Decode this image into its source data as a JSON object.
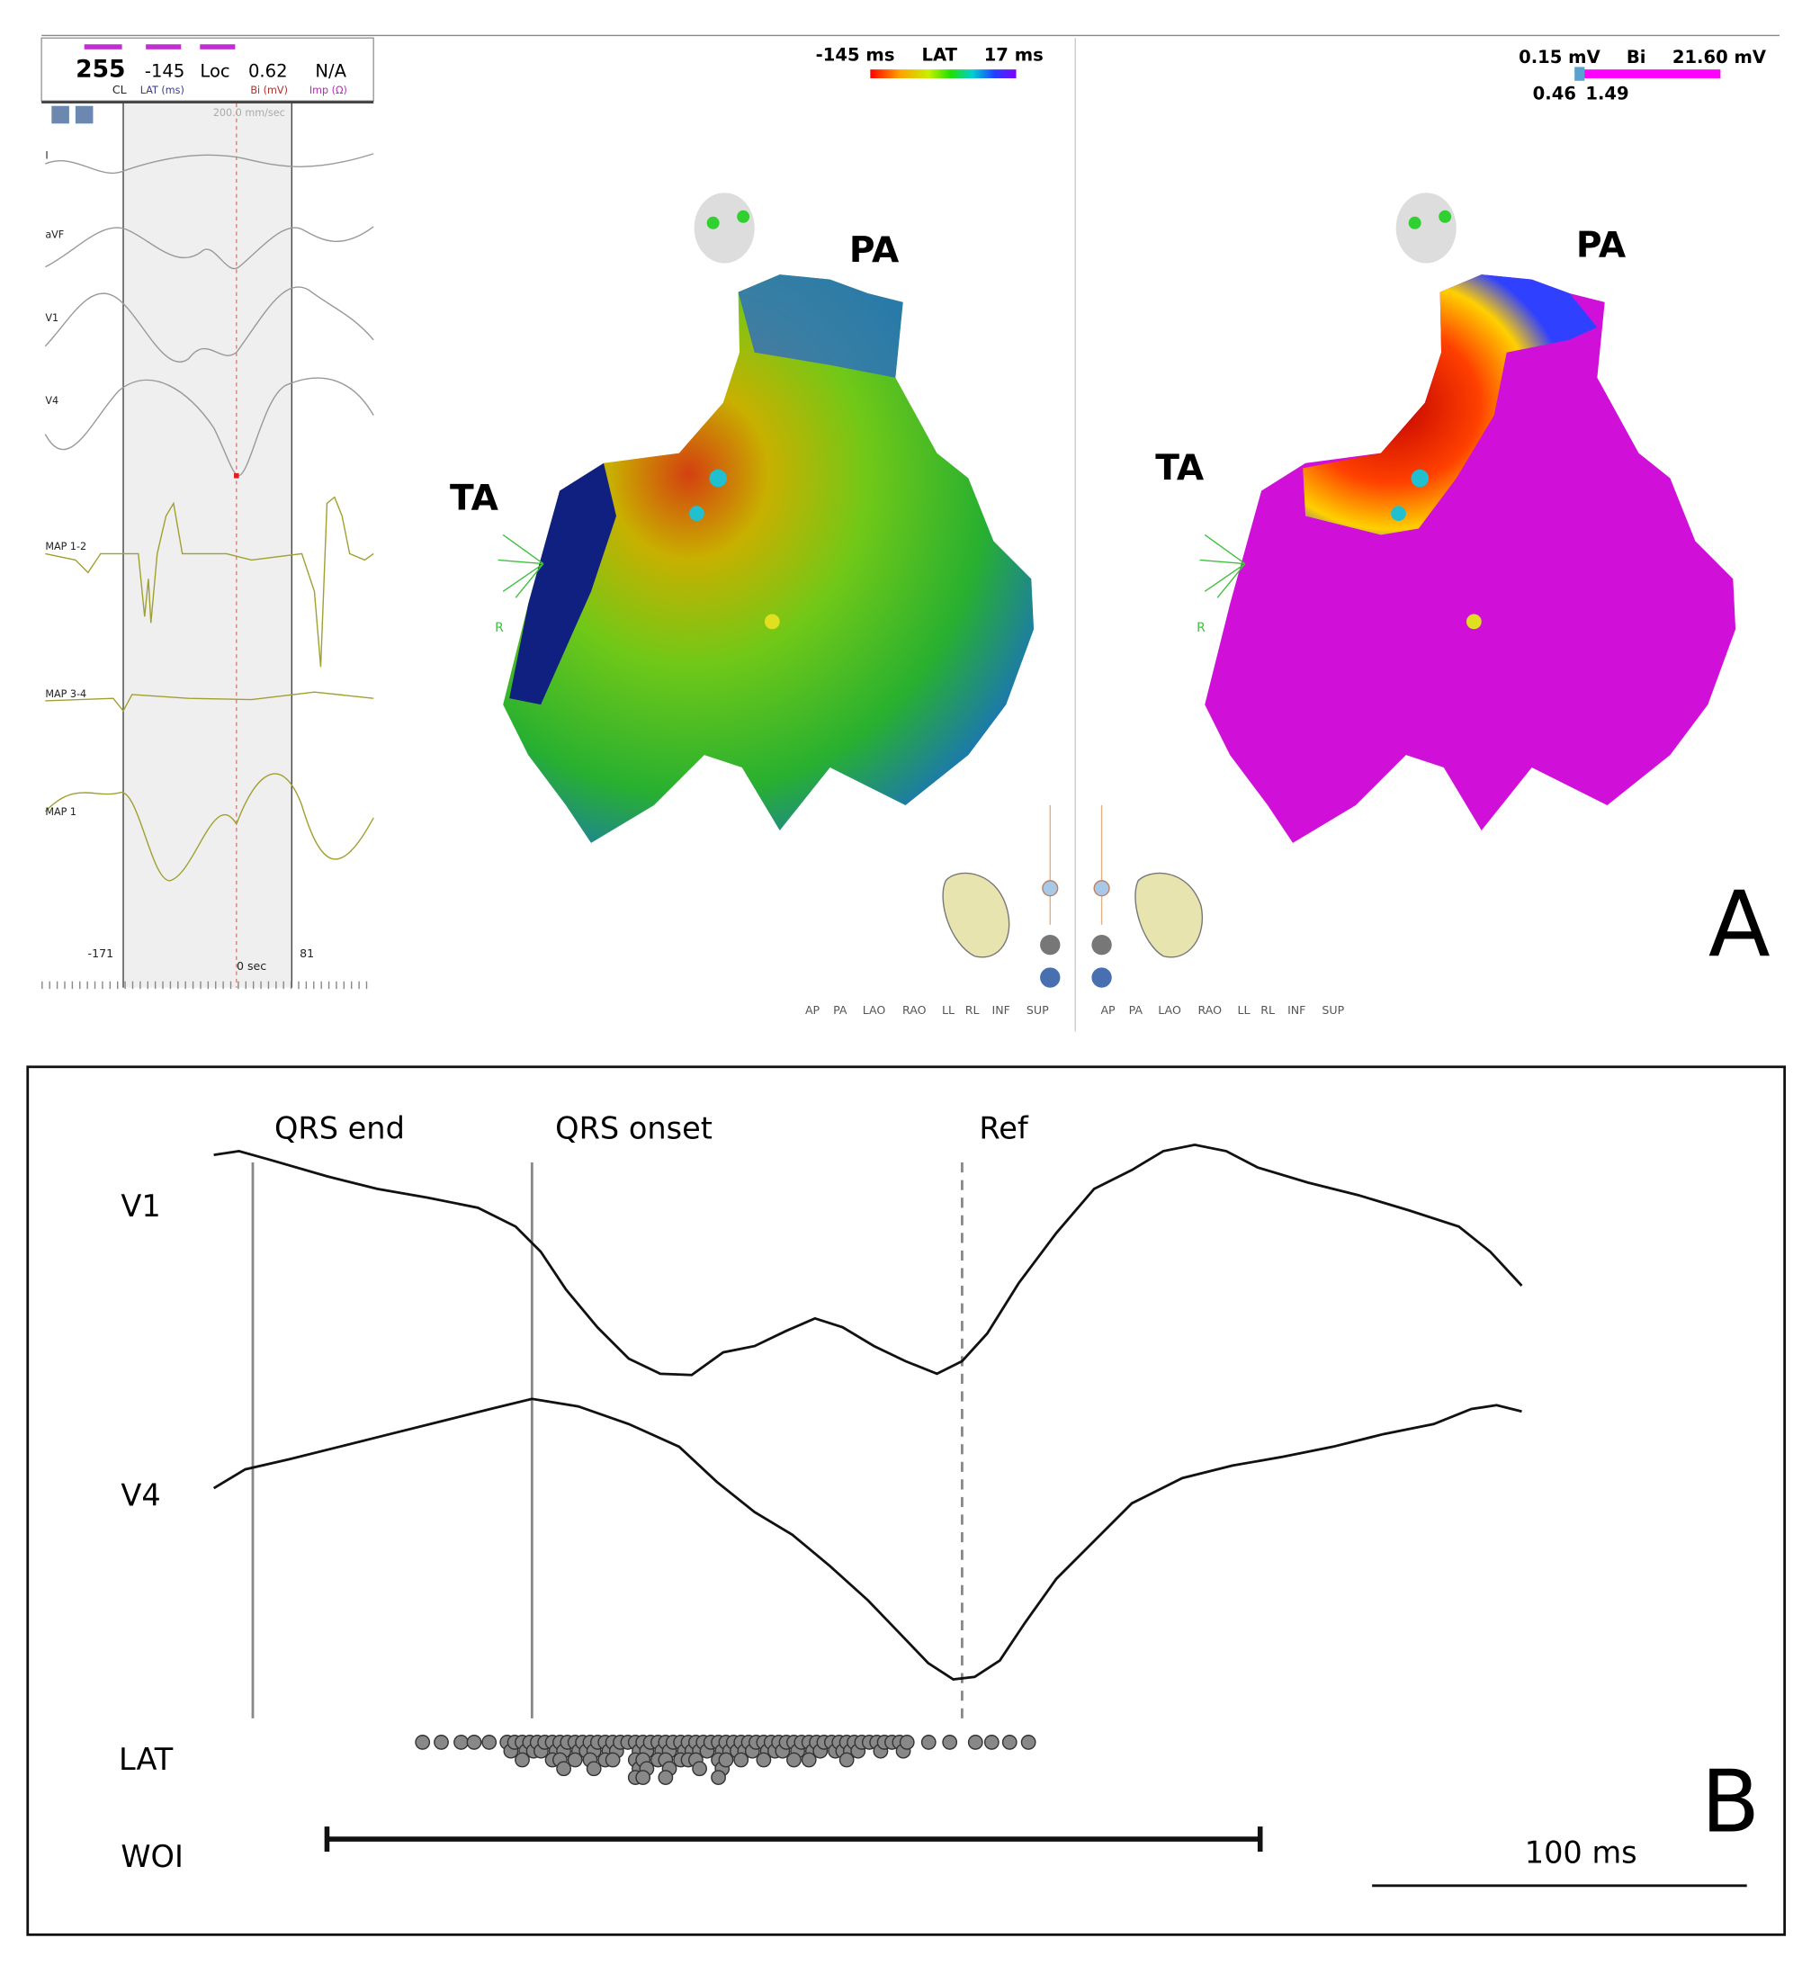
{
  "panel_a": {
    "header": {
      "cl_value": "255",
      "cl_label": "CL",
      "lat_value": "-145",
      "lat_label": "LAT (ms)",
      "loc": "Loc",
      "bi_value": "0.62",
      "bi_label": "Bi (mV)",
      "imp_value": "N/A",
      "imp_label": "Imp (Ω)"
    },
    "sweep_speed": "200.0 mm/sec",
    "leads": [
      "I",
      "aVF",
      "V1",
      "V4",
      "MAP 1-2",
      "MAP 3-4",
      "MAP 1"
    ],
    "time_marks": {
      "left": "-171",
      "center": "0 sec",
      "right": "81"
    },
    "lat_map": {
      "scale_min": "-145 ms",
      "scale_title": "LAT",
      "scale_max": "17 ms",
      "label_pa": "PA",
      "label_ta": "TA",
      "axis_label": "R"
    },
    "voltage_map": {
      "scale_min": "0.15 mV",
      "scale_title": "Bi",
      "scale_max": "21.60 mV",
      "threshold_low": "0.46",
      "threshold_high": "1.49",
      "label_pa": "PA",
      "label_ta": "TA",
      "axis_label": "R"
    },
    "view_buttons_left": [
      "AP",
      "PA",
      "LAO",
      "RAO",
      "LL",
      "RL",
      "INF",
      "SUP"
    ],
    "view_buttons_right": [
      "AP",
      "PA",
      "LAO",
      "RAO",
      "LL",
      "RL",
      "INF",
      "SUP"
    ],
    "panel_label": "A"
  },
  "panel_b": {
    "markers": [
      "QRS end",
      "QRS onset",
      "Ref"
    ],
    "rows": [
      "V1",
      "V4",
      "LAT",
      "WOI"
    ],
    "scale_bar": "100 ms",
    "panel_label": "B"
  }
}
